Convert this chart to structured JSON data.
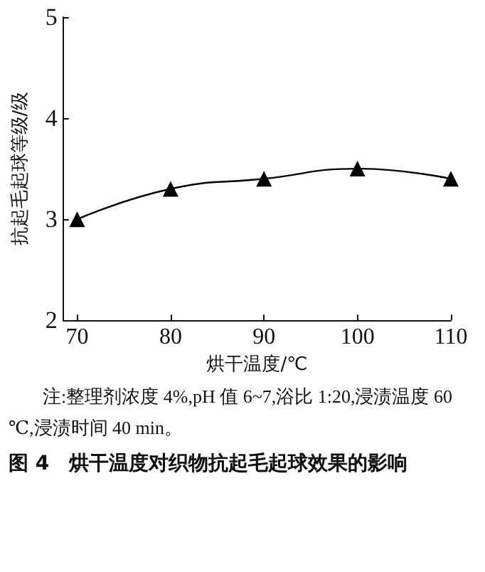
{
  "chart_data": {
    "type": "line",
    "title": "图 4　烘干温度对织物抗起毛起球效果的影响",
    "xlabel": "烘干温度/℃",
    "ylabel": "抗起毛起球等级/级",
    "x": [
      70,
      80,
      90,
      100,
      110
    ],
    "values": [
      3.0,
      3.3,
      3.4,
      3.5,
      3.4
    ],
    "color": "#000000",
    "marker": "triangle",
    "line_style": "solid",
    "xlim": [
      68.5,
      110
    ],
    "xticks": [
      70,
      80,
      90,
      100,
      110
    ],
    "ylim": [
      2,
      5
    ],
    "yticks": [
      2,
      3,
      4,
      5
    ],
    "grid": false,
    "annotations": [
      "注:整理剂浓度 4%,pH 值 6~7,浴比 1:20,浸渍温度 60 ℃,浸渍时间 40 min。"
    ]
  }
}
